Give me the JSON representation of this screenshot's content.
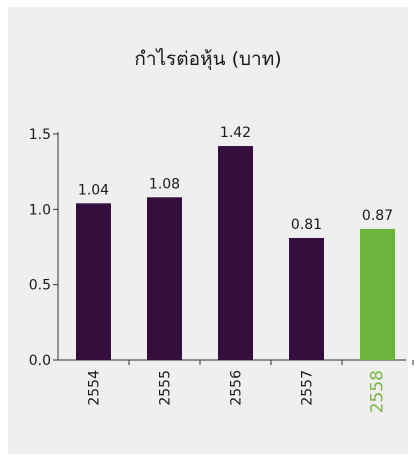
{
  "chart_data": {
    "type": "bar",
    "title": "กำไรต่อหุ้น (บาท)",
    "categories": [
      "2554",
      "2555",
      "2556",
      "2557",
      "2558"
    ],
    "values": [
      1.04,
      1.08,
      1.42,
      0.81,
      0.87
    ],
    "value_labels": [
      "1.04",
      "1.08",
      "1.42",
      "0.81",
      "0.87"
    ],
    "y_ticks": [
      "0.0",
      "0.5",
      "1.0",
      "1.5"
    ],
    "ylim": [
      0,
      1.5
    ],
    "grid": false,
    "colors": {
      "default_bar": "#340f3e",
      "highlight_bar": "#6db33f",
      "highlight_label": "#7ab648"
    },
    "highlight_index": 4
  }
}
